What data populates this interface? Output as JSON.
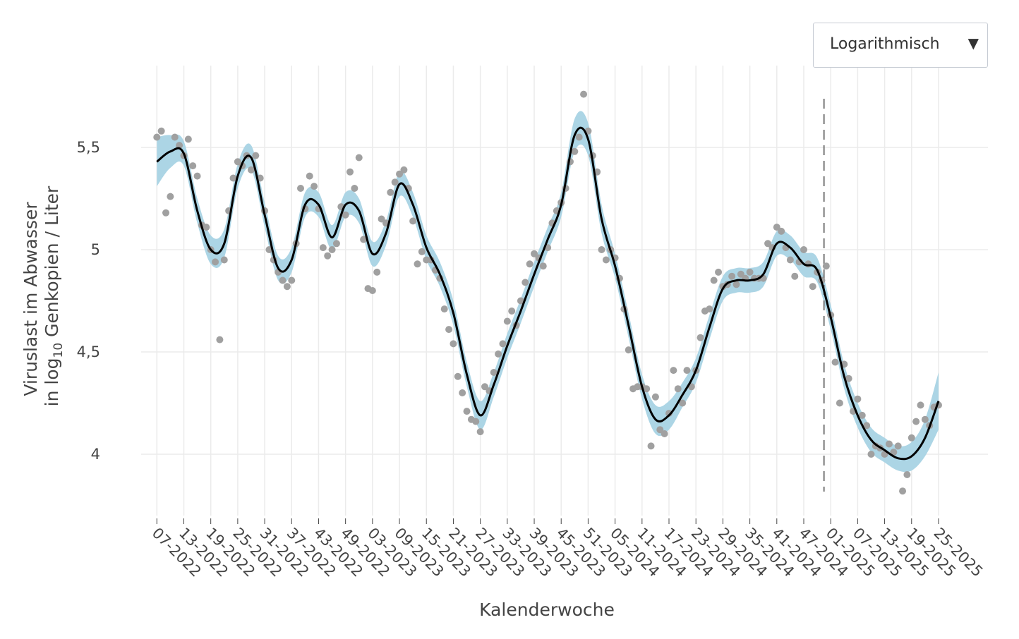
{
  "dropdown": {
    "label": "Logarithmisch"
  },
  "chart_data": {
    "type": "line",
    "xlabel": "Kalenderwoche",
    "ylabel": {
      "line1": "Viruslast im Abwasser",
      "line2_pre": "in log",
      "line2_sub": "10",
      "line2_post": " Genkopien / Liter"
    },
    "xlim": [
      -3.5,
      185
    ],
    "xticks": [
      {
        "value": 0,
        "label": "07-2022"
      },
      {
        "value": 6,
        "label": "13-2022"
      },
      {
        "value": 12,
        "label": "19-2022"
      },
      {
        "value": 18,
        "label": "25-2022"
      },
      {
        "value": 24,
        "label": "31-2022"
      },
      {
        "value": 30,
        "label": "37-2022"
      },
      {
        "value": 36,
        "label": "43-2022"
      },
      {
        "value": 42,
        "label": "49-2022"
      },
      {
        "value": 48,
        "label": "03-2023"
      },
      {
        "value": 54,
        "label": "09-2023"
      },
      {
        "value": 60,
        "label": "15-2023"
      },
      {
        "value": 66,
        "label": "21-2023"
      },
      {
        "value": 72,
        "label": "27-2023"
      },
      {
        "value": 78,
        "label": "33-2023"
      },
      {
        "value": 84,
        "label": "39-2023"
      },
      {
        "value": 90,
        "label": "45-2023"
      },
      {
        "value": 96,
        "label": "51-2023"
      },
      {
        "value": 102,
        "label": "05-2024"
      },
      {
        "value": 108,
        "label": "11-2024"
      },
      {
        "value": 114,
        "label": "17-2024"
      },
      {
        "value": 120,
        "label": "23-2024"
      },
      {
        "value": 126,
        "label": "29-2024"
      },
      {
        "value": 132,
        "label": "35-2024"
      },
      {
        "value": 138,
        "label": "41-2024"
      },
      {
        "value": 144,
        "label": "47-2024"
      },
      {
        "value": 150,
        "label": "01-2025"
      },
      {
        "value": 156,
        "label": "07-2025"
      },
      {
        "value": 162,
        "label": "13-2025"
      },
      {
        "value": 168,
        "label": "19-2025"
      },
      {
        "value": 174,
        "label": "25-2025"
      }
    ],
    "ylim": [
      3.7,
      5.9
    ],
    "yticks": [
      {
        "value": 4,
        "label": "4"
      },
      {
        "value": 4.5,
        "label": "4,5"
      },
      {
        "value": 5,
        "label": "5"
      },
      {
        "value": 5.5,
        "label": "5,5"
      }
    ],
    "grid": true,
    "vline": {
      "x": 148.5,
      "color": "#777777"
    },
    "band": {
      "color": "#acd5e5",
      "x": [
        0,
        3,
        6,
        9,
        12,
        15,
        18,
        21,
        24,
        27,
        30,
        33,
        36,
        39,
        42,
        45,
        48,
        51,
        54,
        57,
        60,
        63,
        66,
        69,
        72,
        75,
        78,
        81,
        84,
        87,
        90,
        93,
        96,
        99,
        102,
        105,
        108,
        111,
        114,
        117,
        120,
        123,
        126,
        129,
        132,
        135,
        138,
        141,
        144,
        147,
        150,
        153,
        156,
        159,
        162,
        165,
        168,
        171,
        174
      ],
      "lower": [
        5.31,
        5.4,
        5.41,
        5.13,
        4.93,
        4.96,
        5.3,
        5.39,
        5.11,
        4.85,
        4.89,
        5.16,
        5.16,
        5.0,
        5.16,
        5.13,
        4.92,
        5.02,
        5.26,
        5.16,
        4.95,
        4.82,
        4.63,
        4.33,
        4.12,
        4.28,
        4.47,
        4.64,
        4.82,
        4.99,
        5.16,
        5.48,
        5.46,
        5.08,
        4.86,
        4.57,
        4.27,
        4.1,
        4.12,
        4.23,
        4.35,
        4.56,
        4.75,
        4.79,
        4.79,
        4.82,
        4.97,
        4.95,
        4.87,
        4.84,
        4.61,
        4.32,
        4.13,
        4.01,
        3.96,
        3.92,
        3.92,
        3.99,
        4.12
      ],
      "upper": [
        5.55,
        5.56,
        5.53,
        5.25,
        5.07,
        5.1,
        5.42,
        5.51,
        5.23,
        4.97,
        5.01,
        5.28,
        5.28,
        5.12,
        5.28,
        5.25,
        5.04,
        5.14,
        5.38,
        5.28,
        5.07,
        4.94,
        4.75,
        4.45,
        4.26,
        4.4,
        4.59,
        4.76,
        4.94,
        5.11,
        5.28,
        5.64,
        5.62,
        5.22,
        4.98,
        4.69,
        4.39,
        4.24,
        4.26,
        4.35,
        4.47,
        4.68,
        4.87,
        4.91,
        4.91,
        4.94,
        5.09,
        5.07,
        4.99,
        4.96,
        4.73,
        4.44,
        4.25,
        4.13,
        4.08,
        4.04,
        4.06,
        4.17,
        4.4
      ]
    },
    "series": [
      {
        "type": "scatter",
        "color": "#a0a0a0",
        "x": [
          0,
          1,
          2,
          3,
          4,
          5,
          6,
          7,
          8,
          9,
          10,
          11,
          12,
          13,
          14,
          15,
          16,
          17,
          18,
          19,
          20,
          21,
          22,
          23,
          24,
          25,
          26,
          27,
          28,
          29,
          30,
          31,
          32,
          33,
          34,
          35,
          36,
          37,
          38,
          39,
          40,
          41,
          42,
          43,
          44,
          45,
          46,
          47,
          48,
          49,
          50,
          51,
          52,
          53,
          54,
          55,
          56,
          57,
          58,
          59,
          60,
          61,
          62,
          63,
          64,
          65,
          66,
          67,
          68,
          69,
          70,
          71,
          72,
          73,
          74,
          75,
          76,
          77,
          78,
          79,
          80,
          81,
          82,
          83,
          84,
          85,
          86,
          87,
          88,
          89,
          90,
          91,
          92,
          93,
          94,
          95,
          96,
          97,
          98,
          99,
          100,
          101,
          102,
          103,
          104,
          105,
          106,
          107,
          108,
          109,
          110,
          111,
          112,
          113,
          114,
          115,
          116,
          117,
          118,
          119,
          120,
          121,
          122,
          123,
          124,
          125,
          126,
          127,
          128,
          129,
          130,
          131,
          132,
          133,
          134,
          135,
          136,
          137,
          138,
          139,
          140,
          141,
          142,
          143,
          144,
          145,
          146,
          147,
          148,
          149,
          150,
          151,
          152,
          153,
          154,
          155,
          156,
          157,
          158,
          159,
          160,
          161,
          162,
          163,
          164,
          165,
          166,
          167,
          168,
          169,
          170,
          171,
          172,
          173,
          174
        ],
        "values": [
          5.55,
          5.58,
          5.18,
          5.26,
          5.55,
          5.51,
          5.46,
          5.54,
          5.41,
          5.36,
          5.12,
          5.11,
          5.0,
          4.94,
          4.56,
          4.95,
          5.19,
          5.35,
          5.43,
          5.41,
          5.46,
          5.39,
          5.46,
          5.35,
          5.19,
          5.0,
          4.95,
          4.89,
          4.85,
          4.82,
          4.85,
          5.03,
          5.3,
          5.2,
          5.36,
          5.31,
          5.2,
          5.01,
          4.97,
          5.0,
          5.03,
          5.21,
          5.17,
          5.38,
          5.3,
          5.45,
          5.05,
          4.81,
          4.8,
          4.89,
          5.15,
          5.13,
          5.28,
          5.33,
          5.37,
          5.39,
          5.3,
          5.14,
          4.93,
          4.99,
          4.95,
          4.95,
          4.9,
          4.86,
          4.71,
          4.61,
          4.54,
          4.38,
          4.3,
          4.21,
          4.17,
          4.16,
          4.11,
          4.33,
          4.31,
          4.4,
          4.49,
          4.54,
          4.65,
          4.7,
          4.63,
          4.75,
          4.84,
          4.93,
          4.98,
          4.96,
          4.92,
          5.01,
          5.13,
          5.19,
          5.23,
          5.3,
          5.43,
          5.48,
          5.55,
          5.76,
          5.58,
          5.46,
          5.38,
          5.0,
          4.95,
          5.0,
          4.96,
          4.86,
          4.71,
          4.51,
          4.32,
          4.33,
          4.33,
          4.32,
          4.04,
          4.28,
          4.12,
          4.1,
          4.2,
          4.41,
          4.32,
          4.25,
          4.41,
          4.33,
          4.41,
          4.57,
          4.7,
          4.71,
          4.85,
          4.89,
          4.82,
          4.83,
          4.87,
          4.83,
          4.88,
          4.86,
          4.89,
          4.86,
          4.86,
          4.86,
          5.03,
          5.01,
          5.11,
          5.09,
          5.01,
          4.95,
          4.87,
          4.94,
          5.0,
          4.93,
          4.82,
          4.89,
          4.85,
          4.92,
          4.68,
          4.45,
          4.25,
          4.44,
          4.37,
          4.21,
          4.27,
          4.19,
          4.14,
          4.0,
          4.04,
          4.03,
          4.0,
          4.05,
          4.01,
          4.04,
          3.82,
          3.9,
          4.08,
          4.16,
          4.24,
          4.17,
          4.14,
          4.23,
          4.24
        ]
      },
      {
        "type": "line",
        "color": "#000000",
        "x": [
          0,
          3,
          6,
          9,
          12,
          15,
          18,
          21,
          24,
          27,
          30,
          33,
          36,
          39,
          42,
          45,
          48,
          51,
          54,
          57,
          60,
          63,
          66,
          69,
          72,
          75,
          78,
          81,
          84,
          87,
          90,
          93,
          96,
          99,
          102,
          105,
          108,
          111,
          114,
          117,
          120,
          123,
          126,
          129,
          132,
          135,
          138,
          141,
          144,
          147,
          150,
          153,
          156,
          159,
          162,
          165,
          168,
          171,
          174
        ],
        "values": [
          5.43,
          5.48,
          5.47,
          5.19,
          5.0,
          5.03,
          5.36,
          5.45,
          5.17,
          4.91,
          4.95,
          5.22,
          5.22,
          5.06,
          5.22,
          5.19,
          4.98,
          5.08,
          5.32,
          5.22,
          5.01,
          4.88,
          4.69,
          4.39,
          4.19,
          4.34,
          4.53,
          4.7,
          4.88,
          5.05,
          5.22,
          5.56,
          5.54,
          5.15,
          4.92,
          4.63,
          4.33,
          4.17,
          4.19,
          4.29,
          4.41,
          4.62,
          4.81,
          4.85,
          4.85,
          4.88,
          5.03,
          5.01,
          4.93,
          4.9,
          4.67,
          4.38,
          4.19,
          4.07,
          4.02,
          3.98,
          3.99,
          4.08,
          4.26
        ]
      }
    ]
  }
}
